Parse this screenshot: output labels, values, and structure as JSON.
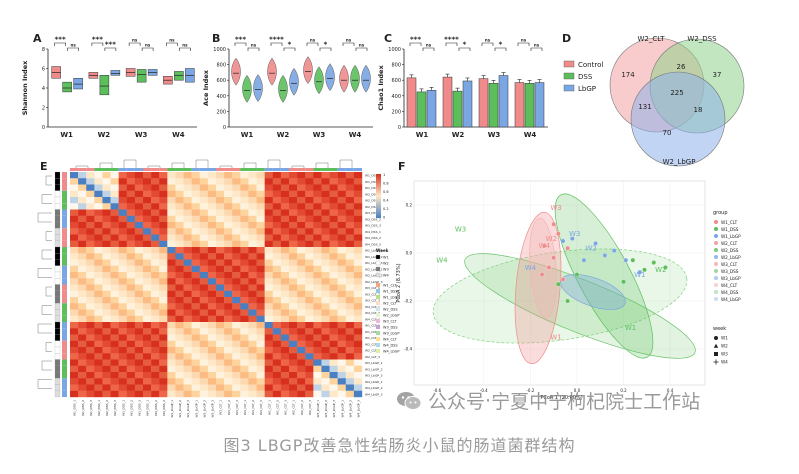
{
  "caption": "图3  LBGP改善急性结肠炎小鼠的肠道菌群结构",
  "watermark": {
    "source": "公众号",
    "sep": " · ",
    "name": "宁夏中宁枸杞院士工作站",
    "icon": "wechat-icon"
  },
  "colors": {
    "control": "#f08b8b",
    "dss": "#5cbf5c",
    "lbgp": "#7aa6e3",
    "heat_high": "#d7301f",
    "heat_low": "#4a7fc1"
  },
  "panels": {
    "A": "A",
    "B": "B",
    "C": "C",
    "D": "D",
    "E": "E",
    "F": "F"
  },
  "chart_data": [
    {
      "panel": "A",
      "type": "box",
      "ylabel": "Shannon Index",
      "categories": [
        "W1",
        "W2",
        "W3",
        "W4"
      ],
      "series_order": [
        "Control",
        "DSS",
        "LbGP"
      ],
      "ylim": [
        0,
        8
      ],
      "yticks": [
        "0",
        "2",
        "4",
        "6",
        "8"
      ],
      "medians": [
        [
          5.6,
          4.0,
          4.4
        ],
        [
          5.3,
          4.2,
          5.5
        ],
        [
          5.6,
          5.4,
          5.6
        ],
        [
          4.8,
          5.3,
          5.3
        ]
      ],
      "boxes": [
        [
          [
            5.0,
            6.2
          ],
          [
            3.6,
            4.6
          ],
          [
            3.9,
            5.0
          ]
        ],
        [
          [
            5.0,
            5.6
          ],
          [
            3.3,
            5.3
          ],
          [
            5.3,
            5.8
          ]
        ],
        [
          [
            5.2,
            6.0
          ],
          [
            4.6,
            5.9
          ],
          [
            5.3,
            5.9
          ]
        ],
        [
          [
            4.4,
            5.2
          ],
          [
            4.8,
            5.7
          ],
          [
            4.6,
            6.0
          ]
        ]
      ],
      "sig_left": [
        "***",
        "***",
        "ns",
        "ns"
      ],
      "sig_right": [
        "ns",
        "***",
        "ns",
        "ns"
      ]
    },
    {
      "panel": "B",
      "type": "violin",
      "ylabel": "Ace Index",
      "categories": [
        "W1",
        "W2",
        "W3",
        "W4"
      ],
      "ylim": [
        0,
        1000
      ],
      "yticks": [
        "0",
        "200",
        "400",
        "600",
        "800",
        "1000"
      ],
      "medians": [
        [
          690,
          470,
          480
        ],
        [
          690,
          470,
          560
        ],
        [
          710,
          580,
          620
        ],
        [
          600,
          600,
          600
        ]
      ],
      "sig_left": [
        "***",
        "****",
        "ns",
        "ns"
      ],
      "sig_right": [
        "ns",
        "*",
        "*",
        "ns"
      ]
    },
    {
      "panel": "C",
      "type": "bar",
      "ylabel": "Chao1 Index",
      "categories": [
        "W1",
        "W2",
        "W3",
        "W4"
      ],
      "ylim": [
        0,
        1000
      ],
      "yticks": [
        "0",
        "200",
        "400",
        "600",
        "800",
        "1000"
      ],
      "values": [
        [
          630,
          450,
          470
        ],
        [
          640,
          460,
          590
        ],
        [
          620,
          560,
          660
        ],
        [
          570,
          560,
          570
        ]
      ],
      "sig_left": [
        "***",
        "****",
        "ns",
        "ns"
      ],
      "sig_right": [
        "ns",
        "*",
        "*",
        "ns"
      ]
    },
    {
      "panel": "D",
      "type": "venn",
      "sets": [
        "W2_CLT",
        "W2_DSS",
        "W2_LbGP"
      ],
      "regions": {
        "CLT_only": 174,
        "DSS_only": 37,
        "LbGP_only": 70,
        "CLT_DSS": 26,
        "CLT_LbGP": 131,
        "DSS_LbGP": 18,
        "all": 225
      },
      "legend": [
        "Control",
        "DSS",
        "LbGP"
      ]
    },
    {
      "panel": "E",
      "type": "heatmap",
      "rows": 36,
      "cols": 36,
      "legend_ticks": [
        "1",
        "0.8",
        "0.6",
        "0.4",
        "0.2",
        "0"
      ],
      "legend_title": "Week",
      "legend_weeks": [
        "W1",
        "W2",
        "W3",
        "W4"
      ],
      "group_labels": [
        "W1_CLT",
        "W1_DSS",
        "W1_LbGP",
        "W2_CLT",
        "W2_DSS",
        "W2_LbGP",
        "W3_CLT",
        "W3_DSS",
        "W3_LbGP",
        "W4_CLT",
        "W4_DSS",
        "W4_LbGP"
      ],
      "sample_labels": [
        "W1_DSS_1",
        "W1_DSS_2",
        "W1_DSS_3",
        "W2_DSS_1",
        "W2_DSS_2",
        "W2_DSS_3",
        "W3_DSS_1",
        "W3_DSS_2",
        "W3_DSS_3",
        "W4_DSS_1",
        "W4_DSS_2",
        "W4_DSS_3",
        "W1_LbGP_1",
        "W1_LbGP_2",
        "W1_LbGP_3",
        "W2_LbGP_1",
        "W2_LbGP_2",
        "W2_LbGP_3",
        "W3_CLT_1",
        "W3_CLT_2",
        "W3_CLT_3",
        "W4_CLT_1",
        "W4_CLT_2",
        "W4_CLT_3",
        "W1_CLT_1",
        "W1_CLT_2",
        "W1_CLT_3",
        "W2_CLT_1",
        "W2_CLT_2",
        "W2_CLT_3",
        "W3_LbGP_1",
        "W3_LbGP_2",
        "W3_LbGP_3",
        "W4_LbGP_1",
        "W4_LbGP_2",
        "W4_LbGP_3"
      ]
    },
    {
      "panel": "F",
      "type": "scatter",
      "xlabel": "PCoA 1 (20.00%)",
      "ylabel": "PCoA 2 (8.73%)",
      "xticks": [
        "-0.6",
        "-0.4",
        "-0.2",
        "0.0",
        "0.2",
        "0.4"
      ],
      "yticks": [
        "0.2",
        "0.0",
        "-0.2",
        "-0.4"
      ],
      "legend_group_title": "group",
      "groups": [
        "W1_CLT",
        "W1_DSS",
        "W1_LbGP",
        "W2_CLT",
        "W2_DSS",
        "W2_LbGP",
        "W3_CLT",
        "W3_DSS",
        "W3_LbGP",
        "W4_CLT",
        "W4_DSS",
        "W4_LbGP"
      ],
      "legend_week_title": "week",
      "weeks": [
        "W1",
        "W2",
        "W3",
        "W4"
      ],
      "centroids": [
        {
          "label": "W3",
          "x": -0.5,
          "y": 0.09,
          "g": "d"
        },
        {
          "label": "W4",
          "x": -0.58,
          "y": -0.04,
          "g": "d"
        },
        {
          "label": "W3",
          "x": -0.09,
          "y": 0.18,
          "g": "c"
        },
        {
          "label": "W4",
          "x": -0.14,
          "y": 0.02,
          "g": "c"
        },
        {
          "label": "W2",
          "x": -0.11,
          "y": 0.05,
          "g": "c"
        },
        {
          "label": "W3",
          "x": -0.01,
          "y": 0.07,
          "g": "l"
        },
        {
          "label": "W4",
          "x": -0.2,
          "y": -0.07,
          "g": "l"
        },
        {
          "label": "W2",
          "x": 0.06,
          "y": 0.01,
          "g": "l"
        },
        {
          "label": "W1",
          "x": -0.09,
          "y": -0.36,
          "g": "c"
        },
        {
          "label": "W2",
          "x": 0.36,
          "y": -0.08,
          "g": "d"
        },
        {
          "label": "W1",
          "x": 0.27,
          "y": -0.1,
          "g": "l"
        },
        {
          "label": "W1",
          "x": 0.23,
          "y": -0.32,
          "g": "d"
        }
      ],
      "points": [
        {
          "g": "c",
          "x": -0.14,
          "y": 0.03
        },
        {
          "g": "c",
          "x": -0.1,
          "y": -0.02
        },
        {
          "g": "c",
          "x": -0.08,
          "y": 0.08
        },
        {
          "g": "c",
          "x": -0.12,
          "y": -0.06
        },
        {
          "g": "c",
          "x": -0.06,
          "y": -0.11
        },
        {
          "g": "c",
          "x": -0.1,
          "y": 0.12
        },
        {
          "g": "c",
          "x": -0.04,
          "y": 0.02
        },
        {
          "g": "c",
          "x": -0.15,
          "y": -0.09
        },
        {
          "g": "d",
          "x": 0.24,
          "y": -0.03
        },
        {
          "g": "d",
          "x": 0.29,
          "y": -0.07
        },
        {
          "g": "d",
          "x": 0.33,
          "y": -0.04
        },
        {
          "g": "d",
          "x": 0.38,
          "y": -0.06
        },
        {
          "g": "d",
          "x": 0.2,
          "y": -0.12
        },
        {
          "g": "d",
          "x": -0.04,
          "y": -0.2
        },
        {
          "g": "d",
          "x": 0.0,
          "y": -0.09
        },
        {
          "g": "d",
          "x": -0.08,
          "y": -0.13
        },
        {
          "g": "l",
          "x": 0.08,
          "y": 0.04
        },
        {
          "g": "l",
          "x": 0.12,
          "y": -0.01
        },
        {
          "g": "l",
          "x": 0.21,
          "y": -0.03
        },
        {
          "g": "l",
          "x": 0.27,
          "y": -0.08
        },
        {
          "g": "l",
          "x": -0.02,
          "y": 0.06
        },
        {
          "g": "l",
          "x": 0.03,
          "y": -0.03
        },
        {
          "g": "l",
          "x": -0.06,
          "y": 0.05
        },
        {
          "g": "l",
          "x": 0.16,
          "y": 0.01
        }
      ]
    }
  ]
}
